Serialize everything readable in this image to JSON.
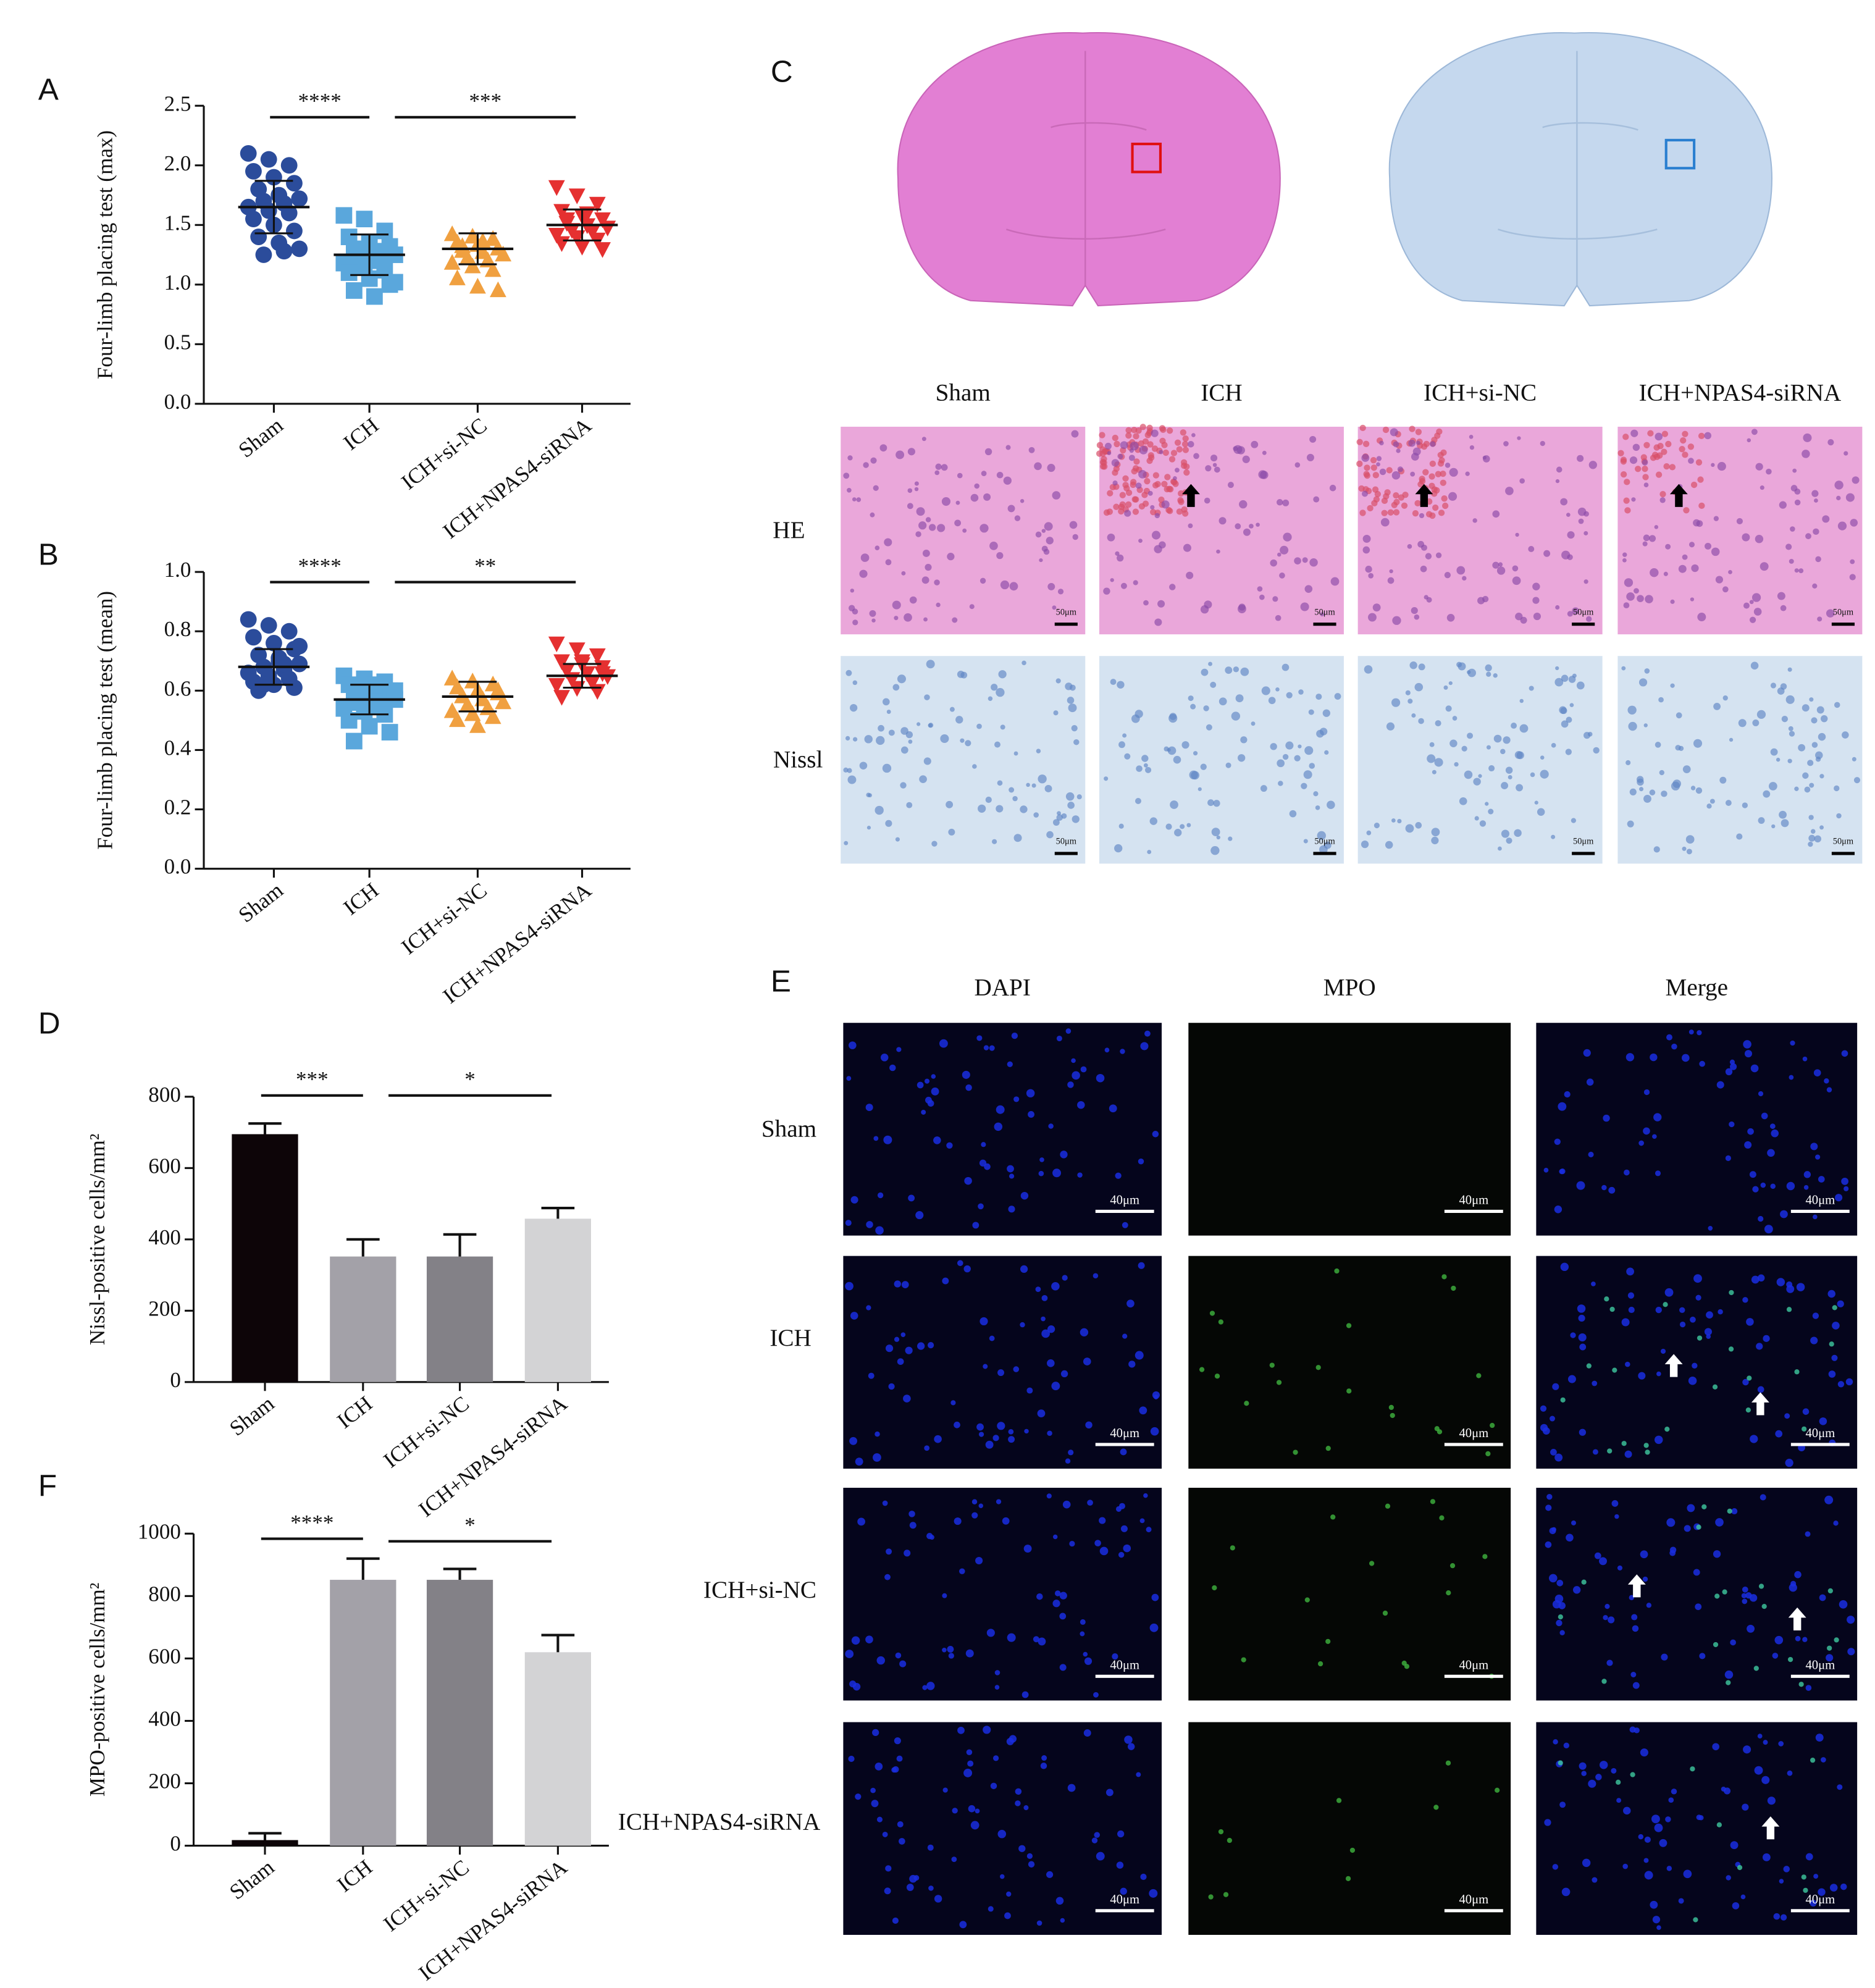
{
  "chart_data": [
    {
      "type": "strip",
      "panel": "A",
      "y_label": "Four-limb placing test (max)",
      "categories": [
        "Sham",
        "ICH",
        "ICH+si-NC",
        "ICH+NPAS4-siRNA"
      ],
      "series": [
        {
          "color": "#2b4c9b",
          "marker": "circle",
          "mean": 1.65,
          "sd": 0.22,
          "values": [
            2.1,
            2.05,
            2.0,
            1.95,
            1.9,
            1.85,
            1.8,
            1.75,
            1.72,
            1.7,
            1.68,
            1.65,
            1.62,
            1.6,
            1.55,
            1.5,
            1.45,
            1.4,
            1.35,
            1.3,
            1.25,
            1.28
          ]
        },
        {
          "color": "#5aa7dc",
          "marker": "square",
          "mean": 1.25,
          "sd": 0.17,
          "values": [
            1.58,
            1.55,
            1.45,
            1.4,
            1.35,
            1.32,
            1.3,
            1.28,
            1.25,
            1.22,
            1.2,
            1.18,
            1.15,
            1.12,
            1.1,
            1.05,
            1.0,
            0.95,
            0.9,
            1.02
          ]
        },
        {
          "color": "#f0a040",
          "marker": "triangle",
          "mean": 1.3,
          "sd": 0.13,
          "values": [
            1.42,
            1.4,
            1.38,
            1.35,
            1.33,
            1.3,
            1.28,
            1.27,
            1.25,
            1.22,
            1.2,
            1.18,
            1.15,
            1.12,
            1.05,
            0.98,
            0.95,
            1.32,
            1.36
          ]
        },
        {
          "color": "#e53030",
          "marker": "triangle-down",
          "mean": 1.5,
          "sd": 0.13,
          "values": [
            1.82,
            1.75,
            1.68,
            1.62,
            1.58,
            1.55,
            1.52,
            1.5,
            1.48,
            1.46,
            1.45,
            1.42,
            1.4,
            1.38,
            1.35,
            1.32,
            1.3,
            1.55,
            1.6
          ]
        }
      ],
      "ylim": [
        0,
        2.5
      ],
      "yticks": [
        {
          "value": 0,
          "label": "0.0"
        },
        0.5,
        {
          "value": 1,
          "label": "1.0"
        },
        1.5,
        {
          "value": 2,
          "label": "2.0"
        },
        2.5
      ],
      "significance": [
        {
          "label": "****",
          "from": 0,
          "to": 1
        },
        {
          "label": "***",
          "from": 1,
          "to": 3
        }
      ]
    },
    {
      "type": "strip",
      "panel": "B",
      "y_label": "Four-limb placing test (mean)",
      "categories": [
        "Sham",
        "ICH",
        "ICH+si-NC",
        "ICH+NPAS4-siRNA"
      ],
      "series": [
        {
          "color": "#2b4c9b",
          "marker": "circle",
          "mean": 0.68,
          "sd": 0.06,
          "values": [
            0.84,
            0.82,
            0.8,
            0.78,
            0.76,
            0.74,
            0.72,
            0.7,
            0.69,
            0.68,
            0.67,
            0.66,
            0.65,
            0.64,
            0.63,
            0.62,
            0.61,
            0.6,
            0.71,
            0.75,
            0.62,
            0.69
          ]
        },
        {
          "color": "#5aa7dc",
          "marker": "square",
          "mean": 0.57,
          "sd": 0.05,
          "values": [
            0.65,
            0.64,
            0.63,
            0.62,
            0.61,
            0.6,
            0.59,
            0.58,
            0.57,
            0.56,
            0.55,
            0.54,
            0.53,
            0.52,
            0.5,
            0.48,
            0.46,
            0.43,
            0.62,
            0.6
          ]
        },
        {
          "color": "#f0a040",
          "marker": "triangle",
          "mean": 0.58,
          "sd": 0.05,
          "values": [
            0.64,
            0.63,
            0.62,
            0.61,
            0.6,
            0.59,
            0.58,
            0.57,
            0.56,
            0.55,
            0.54,
            0.53,
            0.52,
            0.51,
            0.5,
            0.48,
            0.6,
            0.58
          ]
        },
        {
          "color": "#e53030",
          "marker": "triangle-down",
          "mean": 0.65,
          "sd": 0.04,
          "values": [
            0.76,
            0.74,
            0.72,
            0.7,
            0.69,
            0.68,
            0.67,
            0.66,
            0.65,
            0.64,
            0.63,
            0.62,
            0.61,
            0.6,
            0.58,
            0.7,
            0.66
          ]
        }
      ],
      "ylim": [
        0,
        1
      ],
      "yticks": [
        {
          "value": 0,
          "label": "0.0"
        },
        0.2,
        0.4,
        0.6,
        0.8,
        {
          "value": 1,
          "label": "1.0"
        }
      ],
      "significance": [
        {
          "label": "****",
          "from": 0,
          "to": 1
        },
        {
          "label": "**",
          "from": 1,
          "to": 3
        }
      ]
    },
    {
      "type": "bar",
      "panel": "D",
      "y_label": "Nissl-positive cells/mm²",
      "categories": [
        "Sham",
        "ICH",
        "ICH+si-NC",
        "ICH+NPAS4-siRNA"
      ],
      "values": [
        695,
        352,
        352,
        458
      ],
      "errors": [
        30,
        48,
        62,
        30
      ],
      "colors": [
        "#0d0508",
        "#a3a1a8",
        "#838187",
        "#d3d3d5"
      ],
      "ylim": [
        0,
        800
      ],
      "yticks": [
        0,
        200,
        400,
        600,
        800
      ],
      "significance": [
        {
          "label": "***",
          "from": 0,
          "to": 1
        },
        {
          "label": "*",
          "from": 1,
          "to": 3
        }
      ]
    },
    {
      "type": "bar",
      "panel": "F",
      "y_label": "MPO-positive cells/mm²",
      "categories": [
        "Sham",
        "ICH",
        "ICH+si-NC",
        "ICH+NPAS4-siRNA"
      ],
      "values": [
        18,
        852,
        852,
        620
      ],
      "errors": [
        22,
        68,
        35,
        55
      ],
      "colors": [
        "#0d0508",
        "#a3a1a8",
        "#838187",
        "#d3d3d5"
      ],
      "ylim": [
        0,
        1000
      ],
      "yticks": [
        0,
        200,
        400,
        600,
        800,
        1000
      ],
      "significance": [
        {
          "label": "****",
          "from": 0,
          "to": 1
        },
        {
          "label": "*",
          "from": 1,
          "to": 3
        }
      ]
    }
  ],
  "figure_panels": {
    "C": {
      "label": "C",
      "columns": [
        "Sham",
        "ICH",
        "ICH+si-NC",
        "ICH+NPAS4-siRNA"
      ],
      "rows": [
        "HE",
        "Nissl"
      ],
      "scale_label": "50μm"
    },
    "E": {
      "label": "E",
      "columns": [
        "DAPI",
        "MPO",
        "Merge"
      ],
      "rows": [
        "Sham",
        "ICH",
        "ICH+si-NC",
        "ICH+NPAS4-siRNA"
      ],
      "scale_label": "40μm"
    }
  }
}
